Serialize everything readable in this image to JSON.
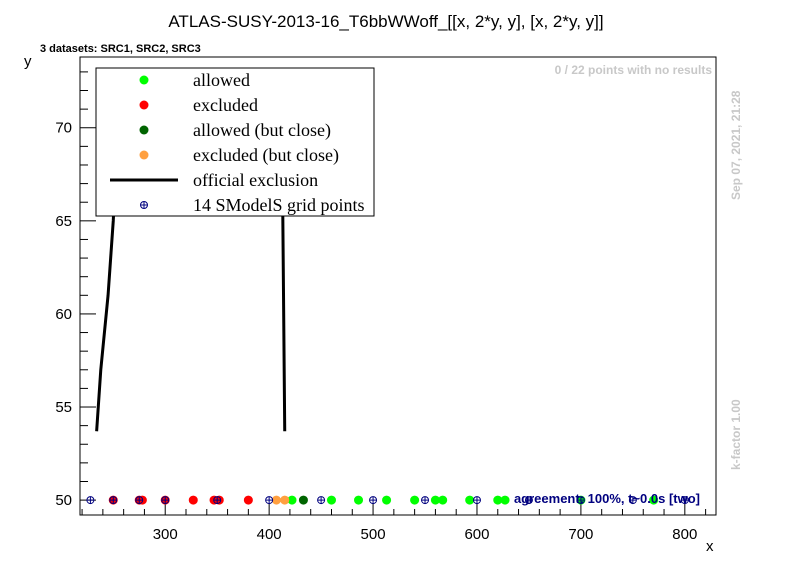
{
  "chart_data": {
    "type": "scatter",
    "title": "ATLAS-SUSY-2013-16_T6bbWWoff_[[x, 2*y, y], [x, 2*y, y]]",
    "subtitle": "3 datasets: SRC1, SRC2, SRC3",
    "xlabel": "x",
    "ylabel": "y",
    "xlim": [
      218,
      830
    ],
    "ylim": [
      49.2,
      73.8
    ],
    "xticks": [
      300,
      400,
      500,
      600,
      700,
      800
    ],
    "yticks": [
      50,
      55,
      60,
      65,
      70
    ],
    "no_results_text": "0 / 22 points with no results",
    "timestamp": "Sep 07, 2021, 21:28",
    "kfactor_text": "k-factor 1.00",
    "agreement_text": "agreement: 100%, t~0.0s [two]",
    "legend": {
      "placement": "top-left",
      "entries": [
        {
          "label": "allowed",
          "color": "#00ff00",
          "marker": "dot"
        },
        {
          "label": "excluded",
          "color": "#ff0000",
          "marker": "dot"
        },
        {
          "label": "allowed (but close)",
          "color": "#006400",
          "marker": "dot"
        },
        {
          "label": "excluded (but close)",
          "color": "#ffa040",
          "marker": "dot"
        },
        {
          "label": "official exclusion",
          "color": "#000000",
          "marker": "line"
        },
        {
          "label": "14 SModelS grid points",
          "color": "#00007f",
          "marker": "cross"
        }
      ]
    },
    "series": [
      {
        "name": "excluded",
        "color": "#ff0000",
        "x": [
          250,
          275,
          278,
          300,
          327,
          347,
          352,
          380
        ],
        "y": [
          50,
          50,
          50,
          50,
          50,
          50,
          50,
          50
        ]
      },
      {
        "name": "allowed",
        "color": "#00ff00",
        "x": [
          422,
          460,
          486,
          513,
          540,
          560,
          567,
          593,
          620,
          627,
          700,
          770
        ],
        "y": [
          50,
          50,
          50,
          50,
          50,
          50,
          50,
          50,
          50,
          50,
          50,
          50
        ]
      },
      {
        "name": "allowed (but close)",
        "color": "#006400",
        "x": [
          433
        ],
        "y": [
          50
        ]
      },
      {
        "name": "excluded (but close)",
        "color": "#ffa040",
        "x": [
          407,
          415
        ],
        "y": [
          50,
          50
        ]
      },
      {
        "name": "14 SModelS grid points",
        "color": "#00007f",
        "x": [
          228,
          250,
          275,
          300,
          350,
          400,
          450,
          500,
          550,
          600,
          650,
          700,
          750,
          800
        ],
        "y": [
          50,
          50,
          50,
          50,
          50,
          50,
          50,
          50,
          50,
          50,
          50,
          50,
          50,
          50
        ]
      }
    ],
    "exclusion_line": {
      "color": "#000000",
      "x": [
        234,
        238,
        245,
        250,
        251,
        254,
        258,
        412,
        413,
        414,
        415
      ],
      "y": [
        53.7,
        57.0,
        61.0,
        65.0,
        66.2,
        69.9,
        69.9,
        71.0,
        66.2,
        60.0,
        53.7
      ]
    },
    "exclusion_line_light": {
      "color": "#b4b4b4",
      "x": [
        251,
        254,
        258,
        410,
        413
      ],
      "y": [
        66.2,
        69.9,
        69.9,
        72.7,
        66.2
      ]
    }
  }
}
